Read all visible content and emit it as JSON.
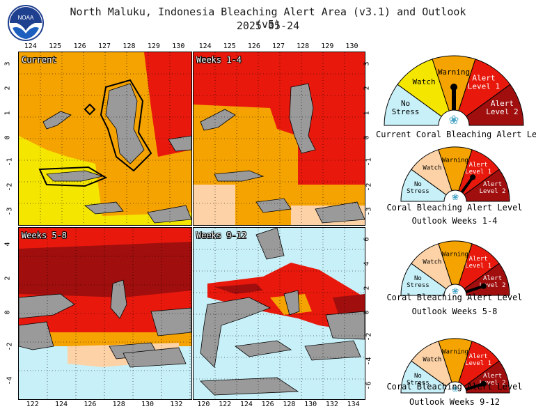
{
  "header": {
    "title": "North Maluku, Indonesia Bleaching Alert Area (v3.1) and Outlook (v5)",
    "date": "2025-05-24",
    "logo_text": "NOAA"
  },
  "palette": {
    "no_stress": "#c8f0f8",
    "watch": "#f5e600",
    "warning": "#f5a300",
    "alert1": "#e8190c",
    "alert2": "#a00e0e",
    "outlook_watch": "#fcd2a6",
    "land": "#9a9a9a"
  },
  "panels": {
    "current": {
      "label": "Current",
      "x_ticks": [
        "124",
        "125",
        "126",
        "127",
        "128",
        "129",
        "130"
      ],
      "y_ticks": [
        "3",
        "2",
        "1",
        "0",
        "-1",
        "-2",
        "-3"
      ]
    },
    "weeks_1_4": {
      "label": "Weeks 1-4",
      "x_ticks": [
        "124",
        "125",
        "126",
        "127",
        "128",
        "129",
        "130"
      ],
      "y_ticks": [
        "3",
        "2",
        "1",
        "0",
        "-1",
        "-2",
        "-3"
      ]
    },
    "weeks_5_8": {
      "label": "Weeks 5-8",
      "x_ticks": [
        "122",
        "124",
        "126",
        "128",
        "130",
        "132"
      ],
      "y_ticks": [
        "4",
        "2",
        "0",
        "-2",
        "-4"
      ]
    },
    "weeks_9_12": {
      "label": "Weeks 9-12",
      "x_ticks": [
        "120",
        "122",
        "124",
        "126",
        "128",
        "130",
        "132",
        "134"
      ],
      "y_ticks": [
        "6",
        "4",
        "2",
        "0",
        "-2",
        "-4",
        "-6"
      ]
    }
  },
  "gauges": [
    {
      "caption_line1": "Current Coral Bleaching Alert Level",
      "caption_line2": "",
      "labels": {
        "no_stress": "No\nStress",
        "watch": "Watch",
        "warning": "Warning",
        "alert1": "Alert\nLevel 1",
        "alert2": "Alert\nLevel 2"
      },
      "level": "Warning"
    },
    {
      "caption_line1": "Coral Bleaching Alert Level",
      "caption_line2": "Outlook Weeks 1-4",
      "labels": {
        "no_stress": "No\nStress",
        "watch": "Watch",
        "warning": "Warning",
        "alert1": "Alert\nLevel 1",
        "alert2": "Alert\nLevel 2"
      },
      "level": "Alert Level 1"
    },
    {
      "caption_line1": "Coral Bleaching Alert Level",
      "caption_line2": "Outlook Weeks 5-8",
      "labels": {
        "no_stress": "No\nStress",
        "watch": "Watch",
        "warning": "Warning",
        "alert1": "Alert\nLevel 1",
        "alert2": "Alert\nLevel 2"
      },
      "level": "Alert Level 2"
    },
    {
      "caption_line1": "Coral Bleaching Alert Level",
      "caption_line2": "Outlook Weeks 9-12",
      "labels": {
        "no_stress": "No\nStress",
        "watch": "Watch",
        "warning": "Warning",
        "alert1": "Alert\nLevel 1",
        "alert2": "Alert\nLevel 2"
      },
      "level": "Alert Level 2"
    }
  ]
}
